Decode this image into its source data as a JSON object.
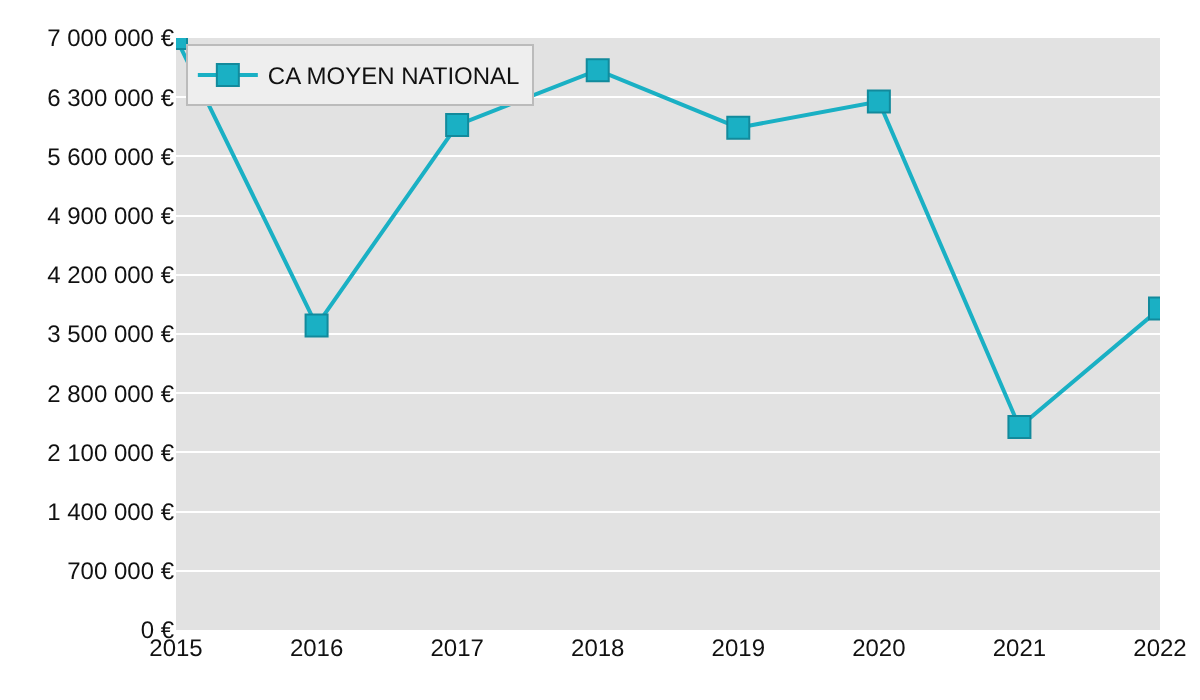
{
  "chart_data": {
    "type": "line",
    "x": [
      2015,
      2016,
      2017,
      2018,
      2019,
      2020,
      2021,
      2022
    ],
    "series": [
      {
        "name": "CA MOYEN NATIONAL",
        "color": "#1ab0c4",
        "values": [
          7000000,
          3600000,
          5970000,
          6620000,
          5940000,
          6250000,
          2400000,
          3800000
        ]
      }
    ],
    "xlim": [
      2015,
      2022
    ],
    "xticks": [
      2015,
      2016,
      2017,
      2018,
      2019,
      2020,
      2021,
      2022
    ],
    "ylim": [
      0,
      7000000
    ],
    "yticks": [
      {
        "value": 0,
        "label": "0 €"
      },
      {
        "value": 700000,
        "label": "700 000 €"
      },
      {
        "value": 1400000,
        "label": "1 400 000 €"
      },
      {
        "value": 2100000,
        "label": "2 100 000 €"
      },
      {
        "value": 2800000,
        "label": "2 800 000 €"
      },
      {
        "value": 3500000,
        "label": "3 500 000 €"
      },
      {
        "value": 4200000,
        "label": "4 200 000 €"
      },
      {
        "value": 4900000,
        "label": "4 900 000 €"
      },
      {
        "value": 5600000,
        "label": "5 600 000 €"
      },
      {
        "value": 6300000,
        "label": "6 300 000 €"
      },
      {
        "value": 7000000,
        "label": "7 000 000 €"
      }
    ],
    "grid": "y",
    "legend": "top left",
    "marker": "square",
    "line_style": "solid"
  }
}
